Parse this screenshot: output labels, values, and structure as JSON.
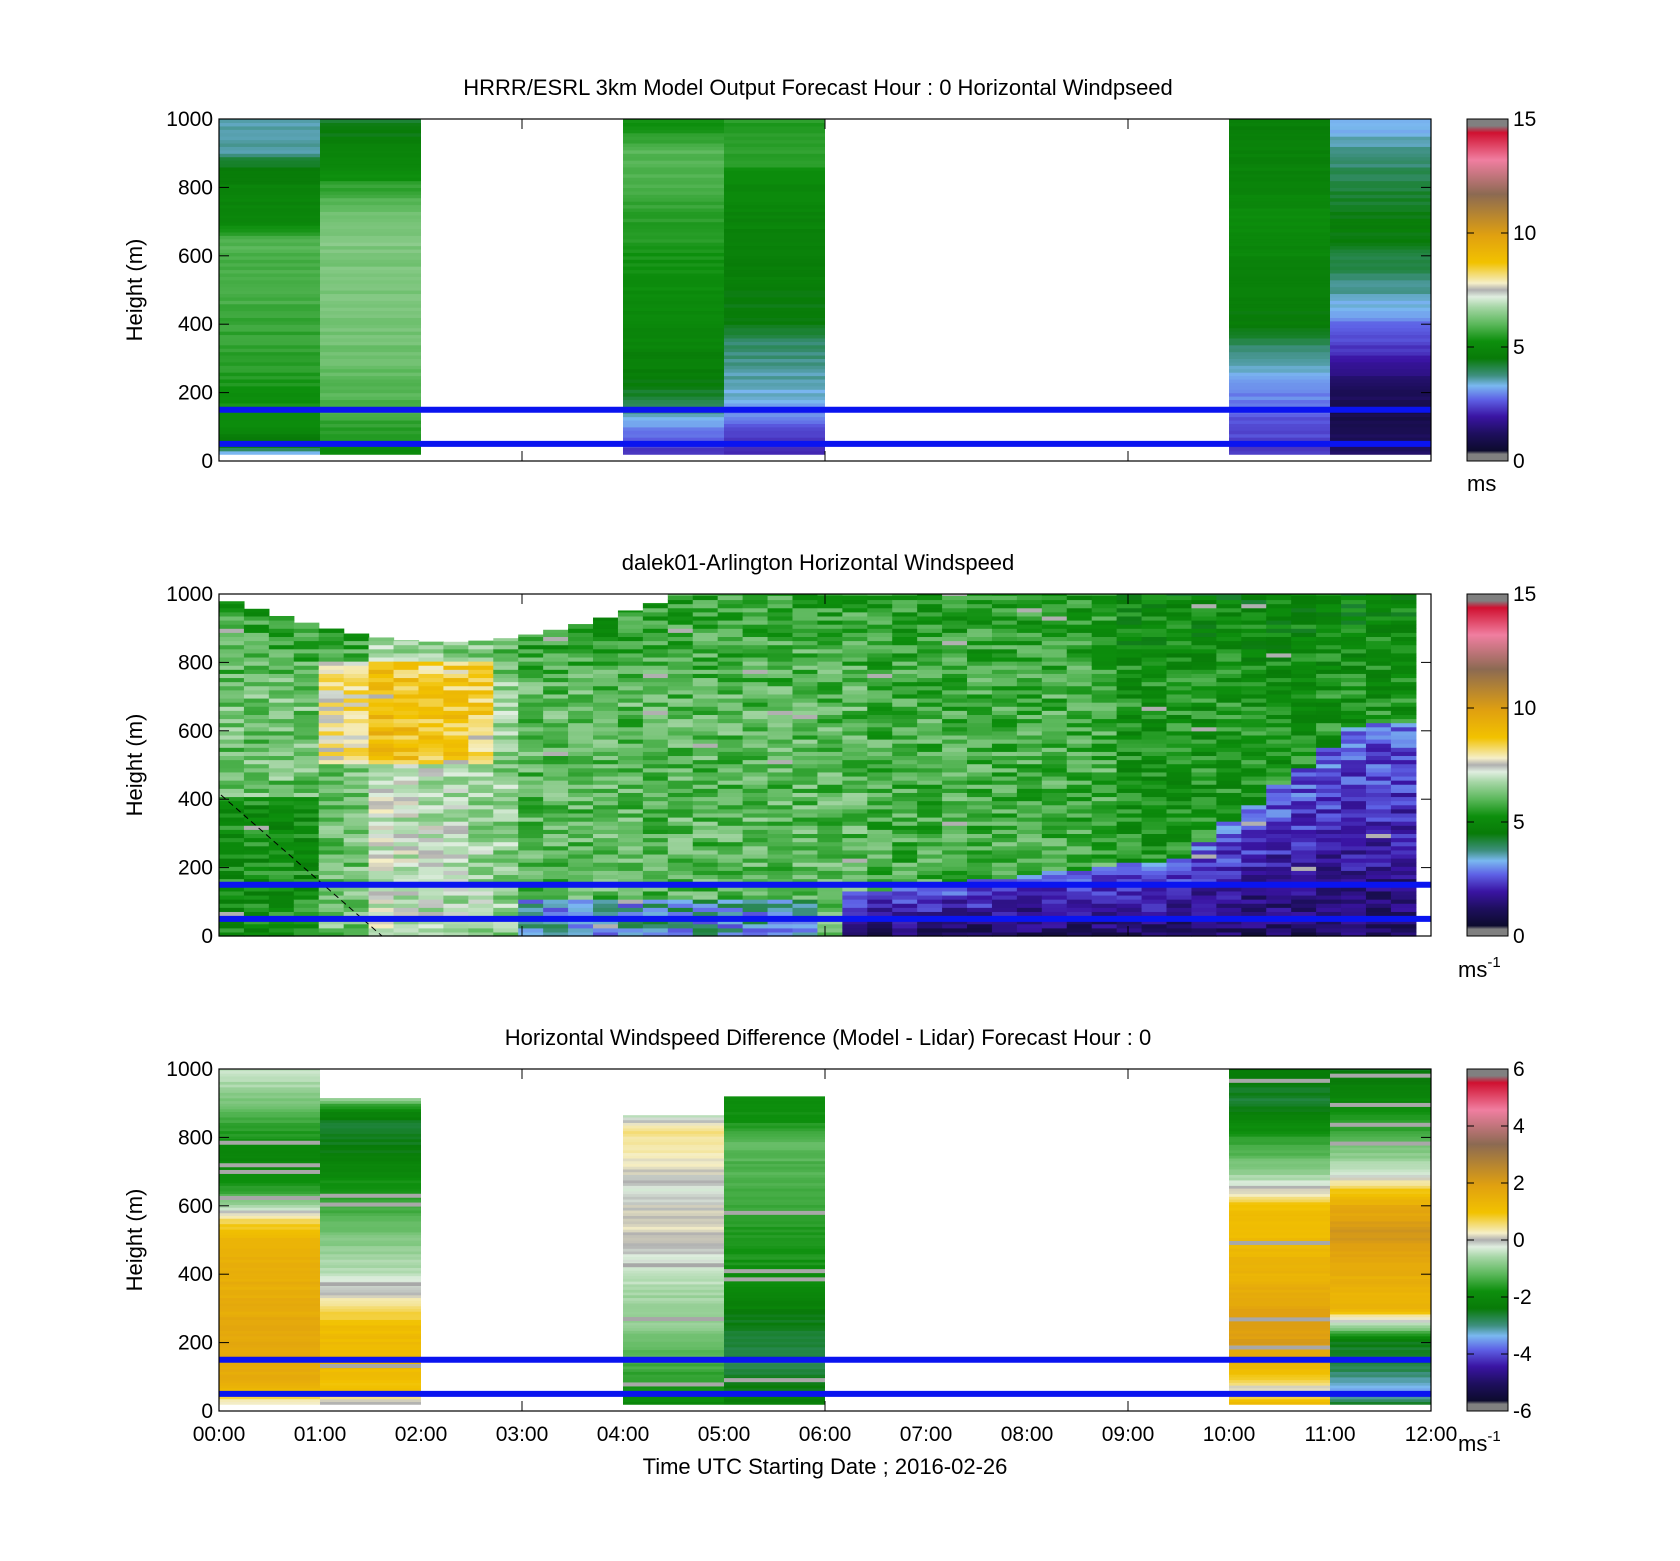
{
  "chart_data": [
    {
      "type": "heatmap",
      "title": "HRRR/ESRL 3km Model Output   Forecast Hour : 0 Horizontal Windpseed",
      "ylabel": "Height (m)",
      "xlabel": "",
      "ylim": [
        0,
        1000
      ],
      "yticks": [
        "0",
        "200",
        "400",
        "600",
        "800",
        "1000"
      ],
      "xlim_hours": [
        0,
        12
      ],
      "grid": false,
      "colorbar": {
        "ticks": [
          "0",
          "5",
          "10",
          "15"
        ],
        "range": [
          0,
          15
        ],
        "unit": "ms"
      },
      "reference_lines_m": [
        150,
        50
      ],
      "columns": [
        {
          "start": 0,
          "end": 1,
          "ymax": 1000,
          "ymin": 20,
          "profile": [
            [
              20,
              3.2
            ],
            [
              50,
              4.5
            ],
            [
              100,
              5.0
            ],
            [
              150,
              5.2
            ],
            [
              200,
              5.3
            ],
            [
              280,
              5.5
            ],
            [
              360,
              5.6
            ],
            [
              500,
              5.8
            ],
            [
              650,
              5.9
            ],
            [
              700,
              5.0
            ],
            [
              800,
              4.8
            ],
            [
              890,
              4.1
            ],
            [
              900,
              3.6
            ],
            [
              1000,
              3.6
            ]
          ]
        },
        {
          "start": 1,
          "end": 2,
          "ymax": 1000,
          "ymin": 20,
          "profile": [
            [
              20,
              5.0
            ],
            [
              60,
              5.4
            ],
            [
              150,
              5.8
            ],
            [
              300,
              6.2
            ],
            [
              500,
              6.3
            ],
            [
              700,
              6.4
            ],
            [
              800,
              5.6
            ],
            [
              850,
              5.0
            ],
            [
              900,
              4.9
            ],
            [
              1000,
              4.2
            ]
          ]
        },
        {
          "start": 4,
          "end": 5,
          "ymax": 1000,
          "ymin": 20,
          "profile": [
            [
              20,
              2.2
            ],
            [
              60,
              2.6
            ],
            [
              120,
              3.2
            ],
            [
              180,
              4.2
            ],
            [
              250,
              4.6
            ],
            [
              400,
              5.0
            ],
            [
              600,
              5.3
            ],
            [
              800,
              5.8
            ],
            [
              900,
              6.0
            ],
            [
              1000,
              5.2
            ]
          ]
        },
        {
          "start": 5,
          "end": 6,
          "ymax": 1000,
          "ymin": 20,
          "profile": [
            [
              20,
              2.0
            ],
            [
              60,
              2.3
            ],
            [
              120,
              2.8
            ],
            [
              200,
              3.4
            ],
            [
              280,
              3.7
            ],
            [
              350,
              3.9
            ],
            [
              400,
              4.4
            ],
            [
              600,
              4.7
            ],
            [
              800,
              5.0
            ],
            [
              900,
              5.6
            ],
            [
              1000,
              5.5
            ]
          ]
        },
        {
          "start": 10,
          "end": 11,
          "ymax": 1000,
          "ymin": 20,
          "profile": [
            [
              20,
              2.3
            ],
            [
              100,
              2.5
            ],
            [
              180,
              2.9
            ],
            [
              260,
              3.3
            ],
            [
              330,
              3.8
            ],
            [
              400,
              4.5
            ],
            [
              600,
              4.9
            ],
            [
              700,
              5.2
            ],
            [
              800,
              4.9
            ],
            [
              900,
              4.7
            ],
            [
              1000,
              4.6
            ]
          ]
        },
        {
          "start": 11,
          "end": 12,
          "ymax": 1000,
          "ymin": 20,
          "profile": [
            [
              20,
              1.2
            ],
            [
              100,
              1.0
            ],
            [
              150,
              0.9
            ],
            [
              230,
              1.3
            ],
            [
              300,
              2.0
            ],
            [
              360,
              2.5
            ],
            [
              420,
              3.0
            ],
            [
              480,
              3.5
            ],
            [
              560,
              4.0
            ],
            [
              620,
              4.2
            ],
            [
              680,
              4.6
            ],
            [
              750,
              4.3
            ],
            [
              820,
              4.1
            ],
            [
              920,
              3.6
            ],
            [
              1000,
              3.1
            ]
          ]
        }
      ]
    },
    {
      "type": "heatmap",
      "title": "dalek01-Arlington  Horizontal Windspeed",
      "ylabel": "Height (m)",
      "xlabel": "",
      "ylim": [
        0,
        1000
      ],
      "yticks": [
        "0",
        "200",
        "400",
        "600",
        "800",
        "1000"
      ],
      "xlim_hours": [
        0,
        12
      ],
      "grid": false,
      "colorbar": {
        "ticks": [
          "0",
          "5",
          "10",
          "15"
        ],
        "range": [
          0,
          15
        ],
        "unit": "ms",
        "unit_exp": "-1"
      },
      "reference_lines_m": [
        150,
        50
      ],
      "lidar_ncols": 48,
      "lidar_end_hour": 11.85
    },
    {
      "type": "heatmap",
      "title": "Horizontal Windspeed Difference (Model - Lidar) Forecast Hour : 0",
      "ylabel": "Height (m)",
      "xlabel": "Time UTC  Starting Date ; 2016-02-26",
      "ylim": [
        0,
        1000
      ],
      "yticks": [
        "0",
        "200",
        "400",
        "600",
        "800",
        "1000"
      ],
      "xlim_hours": [
        0,
        12
      ],
      "xticks": [
        "00:00",
        "01:00",
        "02:00",
        "03:00",
        "04:00",
        "05:00",
        "06:00",
        "07:00",
        "08:00",
        "09:00",
        "10:00",
        "11:00",
        "12:00"
      ],
      "grid": false,
      "colorbar": {
        "ticks": [
          "-6",
          "-4",
          "-2",
          "0",
          "2",
          "4",
          "6"
        ],
        "range": [
          -6,
          6
        ],
        "unit": "ms",
        "unit_exp": "-1"
      },
      "reference_lines_m": [
        150,
        50
      ],
      "columns": [
        {
          "start": 0,
          "end": 1,
          "ymax": 1000,
          "ymin": 20,
          "profile": [
            [
              20,
              0.0
            ],
            [
              50,
              1.0
            ],
            [
              100,
              1.6
            ],
            [
              200,
              1.7
            ],
            [
              300,
              1.6
            ],
            [
              400,
              1.5
            ],
            [
              500,
              1.4
            ],
            [
              560,
              0.6
            ],
            [
              600,
              -0.5
            ],
            [
              650,
              -1.6
            ],
            [
              750,
              -2.1
            ],
            [
              850,
              -1.4
            ],
            [
              950,
              -0.6
            ],
            [
              1000,
              -0.4
            ]
          ]
        },
        {
          "start": 1,
          "end": 2,
          "ymax": 915,
          "ymin": 20,
          "profile": [
            [
              20,
              -0.2
            ],
            [
              60,
              1.0
            ],
            [
              150,
              1.2
            ],
            [
              250,
              1.1
            ],
            [
              320,
              0.3
            ],
            [
              380,
              -0.3
            ],
            [
              480,
              -0.8
            ],
            [
              600,
              -1.4
            ],
            [
              700,
              -2.0
            ],
            [
              780,
              -2.5
            ],
            [
              850,
              -2.6
            ],
            [
              900,
              -1.4
            ],
            [
              915,
              -0.6
            ]
          ]
        },
        {
          "start": 4,
          "end": 5,
          "ymax": 865,
          "ymin": 20,
          "profile": [
            [
              20,
              -2.0
            ],
            [
              80,
              -1.6
            ],
            [
              150,
              -1.3
            ],
            [
              250,
              -0.8
            ],
            [
              350,
              -0.6
            ],
            [
              450,
              -0.2
            ],
            [
              550,
              0.2
            ],
            [
              650,
              -0.2
            ],
            [
              750,
              0.3
            ],
            [
              830,
              0.5
            ],
            [
              865,
              -0.5
            ]
          ]
        },
        {
          "start": 5,
          "end": 6,
          "ymax": 920,
          "ymin": 20,
          "profile": [
            [
              20,
              -2.2
            ],
            [
              150,
              -2.8
            ],
            [
              260,
              -2.5
            ],
            [
              350,
              -2.0
            ],
            [
              450,
              -1.7
            ],
            [
              600,
              -1.5
            ],
            [
              700,
              -1.3
            ],
            [
              800,
              -1.2
            ],
            [
              850,
              -1.8
            ],
            [
              920,
              -1.9
            ]
          ]
        },
        {
          "start": 10,
          "end": 11,
          "ymax": 1000,
          "ymin": 20,
          "profile": [
            [
              20,
              1.3
            ],
            [
              60,
              0.0
            ],
            [
              100,
              0.8
            ],
            [
              150,
              1.5
            ],
            [
              200,
              2.0
            ],
            [
              300,
              1.8
            ],
            [
              400,
              1.4
            ],
            [
              500,
              1.2
            ],
            [
              600,
              1.0
            ],
            [
              650,
              0.0
            ],
            [
              700,
              -0.8
            ],
            [
              800,
              -1.6
            ],
            [
              900,
              -2.6
            ],
            [
              1000,
              -2.4
            ]
          ]
        },
        {
          "start": 11,
          "end": 12,
          "ymax": 1000,
          "ymin": 20,
          "profile": [
            [
              20,
              -2.5
            ],
            [
              60,
              -3.6
            ],
            [
              120,
              -2.8
            ],
            [
              200,
              -2.5
            ],
            [
              260,
              -0.3
            ],
            [
              300,
              1.3
            ],
            [
              380,
              1.5
            ],
            [
              450,
              1.7
            ],
            [
              520,
              2.2
            ],
            [
              600,
              1.6
            ],
            [
              650,
              0.8
            ],
            [
              700,
              -0.3
            ],
            [
              800,
              -1.3
            ],
            [
              900,
              -2.0
            ],
            [
              1000,
              -2.5
            ]
          ]
        }
      ]
    }
  ]
}
